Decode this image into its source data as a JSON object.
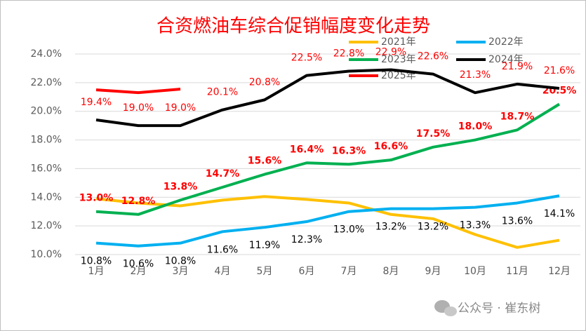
{
  "chart_data": {
    "type": "line",
    "title": "合资燃油车综合促销幅度变化走势",
    "watermark": "公众号 · 崔东树",
    "categories": [
      "1月",
      "2月",
      "3月",
      "4月",
      "5月",
      "6月",
      "7月",
      "8月",
      "9月",
      "10月",
      "11月",
      "12月"
    ],
    "ylim": [
      10,
      24
    ],
    "yticks": [
      {
        "value": 10,
        "label": "10.0%"
      },
      {
        "value": 12,
        "label": "12.0%"
      },
      {
        "value": 14,
        "label": "14.0%"
      },
      {
        "value": 16,
        "label": "16.0%"
      },
      {
        "value": 18,
        "label": "18.0%"
      },
      {
        "value": 20,
        "label": "20.0%"
      },
      {
        "value": 22,
        "label": "22.0%"
      },
      {
        "value": 24,
        "label": "24.0%"
      }
    ],
    "grid": true,
    "series": [
      {
        "name": "2021年",
        "color": "#ffc000",
        "values": [
          13.9,
          13.6,
          13.4,
          13.8,
          14.05,
          13.85,
          13.6,
          12.8,
          12.5,
          11.4,
          10.5,
          11.0
        ]
      },
      {
        "name": "2022年",
        "color": "#00b0f0",
        "values": [
          10.8,
          10.6,
          10.8,
          11.6,
          11.9,
          12.3,
          13.0,
          13.2,
          13.2,
          13.3,
          13.6,
          14.1
        ],
        "value_labels": [
          "10.8%",
          "10.6%",
          "10.8%",
          "11.6%",
          "11.9%",
          "12.3%",
          "13.0%",
          "13.2%",
          "13.2%",
          "13.3%",
          "13.6%",
          "14.1%"
        ]
      },
      {
        "name": "2023年",
        "color": "#00b050",
        "values": [
          13.0,
          12.8,
          13.8,
          14.7,
          15.6,
          16.4,
          16.3,
          16.6,
          17.5,
          18.0,
          18.7,
          20.5
        ],
        "value_labels": [
          "13.0%",
          "12.8%",
          "13.8%",
          "14.7%",
          "15.6%",
          "16.4%",
          "16.3%",
          "16.6%",
          "17.5%",
          "18.0%",
          "18.7%",
          "20.5%"
        ]
      },
      {
        "name": "2024年",
        "color": "#000000",
        "values": [
          19.4,
          19.0,
          19.0,
          20.1,
          20.8,
          22.5,
          22.8,
          22.9,
          22.6,
          21.3,
          21.9,
          21.6
        ],
        "value_labels": [
          "19.4%",
          "19.0%",
          "19.0%",
          "20.1%",
          "20.8%",
          "22.5%",
          "22.8%",
          "22.9%",
          "22.6%",
          "21.3%",
          "21.9%",
          "21.6%"
        ]
      },
      {
        "name": "2025年",
        "color": "#ff0000",
        "values": [
          21.5,
          21.3,
          21.55,
          null,
          null,
          null,
          null,
          null,
          null,
          null,
          null,
          null
        ]
      }
    ]
  }
}
